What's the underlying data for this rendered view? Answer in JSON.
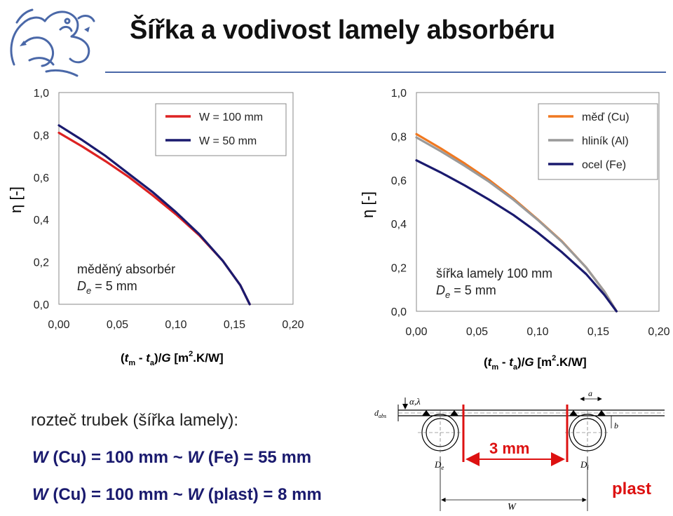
{
  "header": {
    "title": "Šířka a vodivost lamely absorbéru",
    "accent_color": "#4a68a8"
  },
  "chart_data": [
    {
      "type": "line",
      "ylabel": "η [-]",
      "xlabel_parts": [
        "(",
        "t",
        "m",
        " - ",
        "t",
        "a",
        ")/",
        "G",
        " [m",
        "2",
        ".K/W]"
      ],
      "xlim": [
        0,
        0.2
      ],
      "ylim": [
        0,
        1.0
      ],
      "x_ticks": [
        "0,00",
        "0,05",
        "0,10",
        "0,15",
        "0,20"
      ],
      "y_ticks": [
        "1,0",
        "0,8",
        "0,6",
        "0,4",
        "0,2",
        "0,0"
      ],
      "grid": false,
      "legend_position": "top-right",
      "annotation": {
        "line1": "měděný absorbér",
        "line2_symbol": "D",
        "line2_sub": "e",
        "line2_rest": " = 5 mm"
      },
      "series": [
        {
          "name": "W = 100 mm",
          "color": "#dd2222",
          "x": [
            0.0,
            0.02,
            0.04,
            0.06,
            0.08,
            0.1,
            0.12,
            0.14,
            0.155,
            0.163
          ],
          "y": [
            0.81,
            0.745,
            0.675,
            0.6,
            0.515,
            0.425,
            0.325,
            0.205,
            0.09,
            0.0
          ]
        },
        {
          "name": "W = 50 mm",
          "color": "#1a1a6e",
          "x": [
            0.0,
            0.02,
            0.04,
            0.06,
            0.08,
            0.1,
            0.12,
            0.14,
            0.155,
            0.163
          ],
          "y": [
            0.845,
            0.775,
            0.7,
            0.615,
            0.53,
            0.435,
            0.33,
            0.205,
            0.09,
            0.0
          ]
        }
      ]
    },
    {
      "type": "line",
      "ylabel": "η [-]",
      "xlabel_parts": [
        "(",
        "t",
        "m",
        " - ",
        "t",
        "a",
        ")/",
        "G",
        " [m",
        "2",
        ".K/W]"
      ],
      "xlim": [
        0,
        0.2
      ],
      "ylim": [
        0,
        1.0
      ],
      "x_ticks": [
        "0,00",
        "0,05",
        "0,10",
        "0,15",
        "0,20"
      ],
      "y_ticks": [
        "1,0",
        "0,8",
        "0,6",
        "0,4",
        "0,2",
        "0,0"
      ],
      "grid": false,
      "legend_position": "top-right",
      "annotation": {
        "line1": "šířka lamely 100 mm",
        "line2_symbol": "D",
        "line2_sub": "e",
        "line2_rest": " = 5 mm"
      },
      "series": [
        {
          "name": "měď (Cu)",
          "color": "#f07820",
          "x": [
            0.0,
            0.02,
            0.04,
            0.06,
            0.08,
            0.1,
            0.12,
            0.14,
            0.155,
            0.165
          ],
          "y": [
            0.81,
            0.745,
            0.675,
            0.6,
            0.515,
            0.42,
            0.32,
            0.2,
            0.09,
            0.0
          ]
        },
        {
          "name": "hliník (Al)",
          "color": "#9a9a9a",
          "x": [
            0.0,
            0.02,
            0.04,
            0.06,
            0.08,
            0.1,
            0.12,
            0.14,
            0.155,
            0.165
          ],
          "y": [
            0.795,
            0.732,
            0.664,
            0.592,
            0.51,
            0.418,
            0.318,
            0.2,
            0.09,
            0.0
          ]
        },
        {
          "name": "ocel (Fe)",
          "color": "#1a1a6e",
          "x": [
            0.0,
            0.02,
            0.04,
            0.06,
            0.08,
            0.1,
            0.12,
            0.14,
            0.155,
            0.165
          ],
          "y": [
            0.69,
            0.635,
            0.575,
            0.51,
            0.44,
            0.36,
            0.27,
            0.17,
            0.075,
            0.0
          ]
        }
      ]
    }
  ],
  "bottom": {
    "line1": "rozteč trubek (šířka lamely):",
    "line2": {
      "a_sym": "W",
      "a_rest": " (Cu) = 100 mm ~ ",
      "b_sym": "W",
      "b_rest": " (Fe) = 55 mm"
    },
    "line3": {
      "a_sym": "W",
      "a_rest": " (Cu) = 100 mm ~ ",
      "b_sym": "W",
      "b_rest": " (plast) = 8 mm"
    }
  },
  "diagram": {
    "label_dabs": "d",
    "label_dabs_sub": "abs",
    "label_alpha_lambda": "α,λ",
    "label_a": "a",
    "label_b": "b",
    "label_De": "D",
    "label_De_sub": "e",
    "label_Di": "D",
    "label_Di_sub": "i",
    "label_W": "W",
    "label_3mm": "3 mm",
    "label_plast": "plast",
    "highlight_color": "#dd1111"
  }
}
